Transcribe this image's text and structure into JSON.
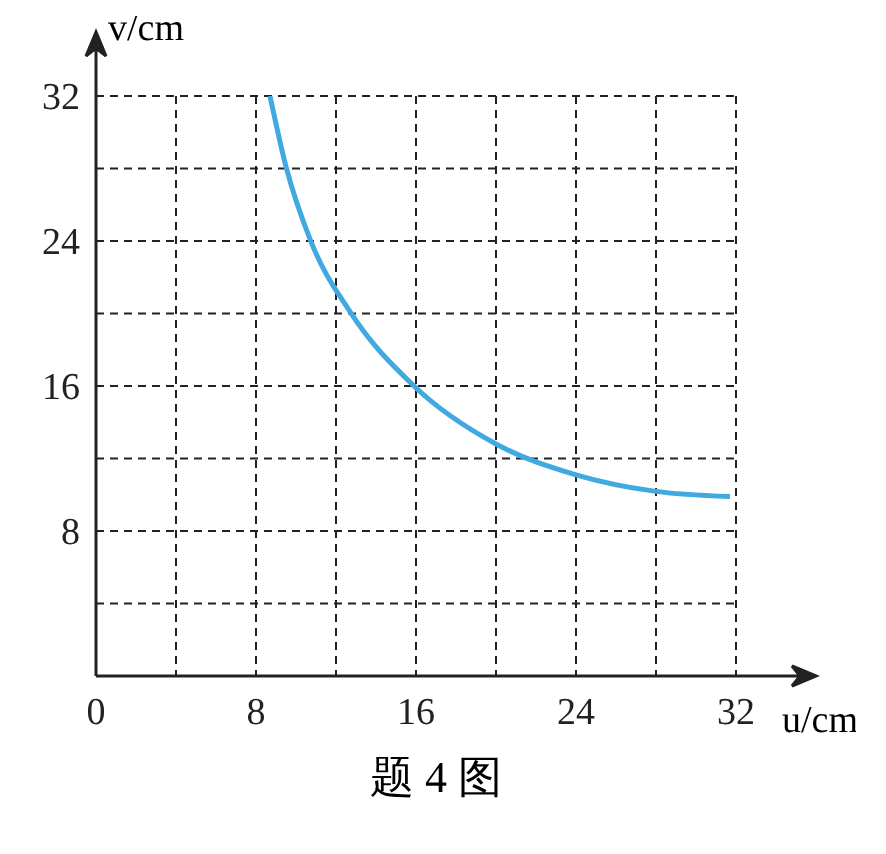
{
  "chart_data": {
    "type": "line",
    "title": "题 4 图",
    "xlabel": "u/cm",
    "ylabel": "v/cm",
    "x": [
      8.7,
      9.5,
      10.7,
      12.7,
      15.9,
      20,
      24,
      27.9,
      31.7
    ],
    "series": [
      {
        "color": "#3fa9e0",
        "values": [
          32,
          28.1,
          24.1,
          20.1,
          16,
          12.8,
          11.1,
          10.2,
          9.9
        ]
      }
    ],
    "xlim": [
      0,
      32
    ],
    "ylim": [
      0,
      32
    ],
    "xticks": [
      0,
      {
        "value": 4,
        "label": null
      },
      8,
      {
        "value": 12,
        "label": null
      },
      16,
      {
        "value": 20,
        "label": null
      },
      24,
      {
        "value": 28,
        "label": null
      },
      32
    ],
    "yticks": [
      {
        "value": 0,
        "label": null
      },
      {
        "value": 4,
        "label": null
      },
      8,
      {
        "value": 12,
        "label": null
      },
      16,
      {
        "value": 20,
        "label": null
      },
      24,
      {
        "value": 28,
        "label": null
      },
      32
    ],
    "grid": true,
    "line_style": "solid",
    "marker": "none"
  }
}
